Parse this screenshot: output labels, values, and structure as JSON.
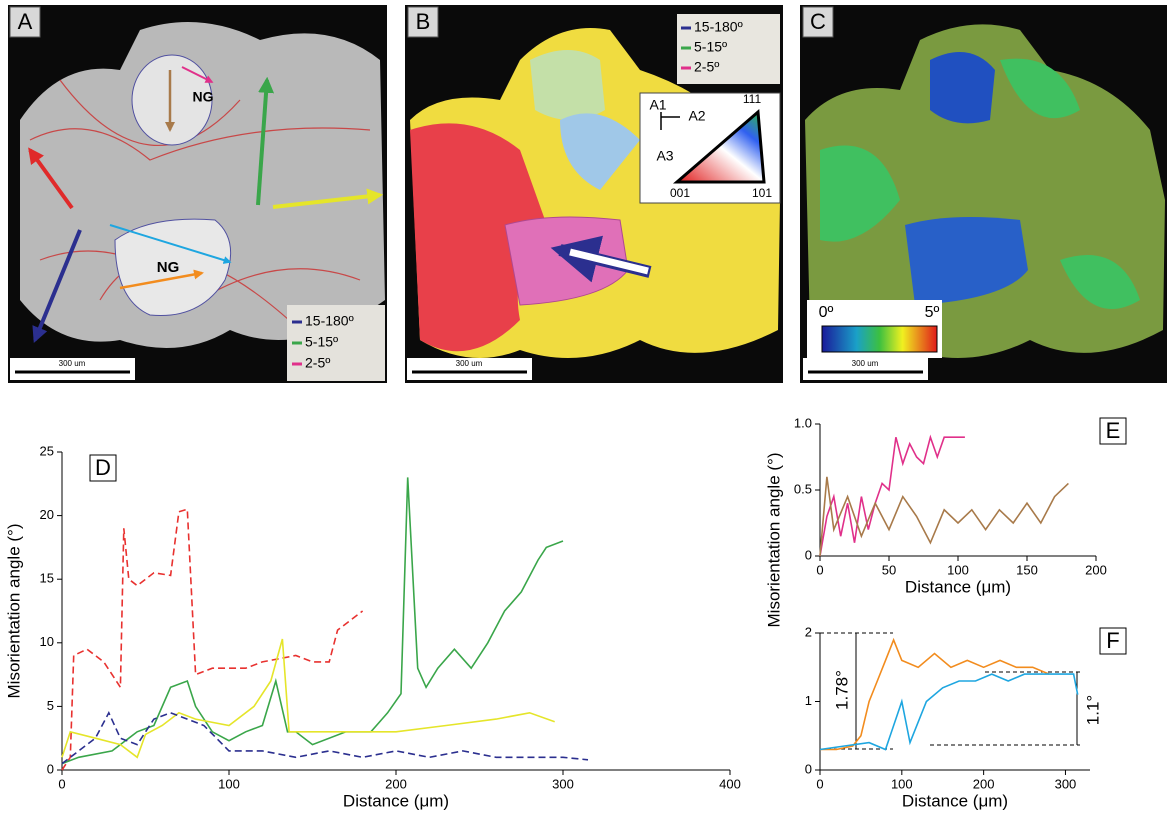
{
  "panels": [
    {
      "label": "A",
      "grain_labels": [
        "NG",
        "NG"
      ],
      "legend": [
        "15-180º",
        "5-15º",
        "2-5º"
      ],
      "scale_bar": "300 um"
    },
    {
      "label": "B",
      "legend": [
        "15-180º",
        "5-15º",
        "2-5º"
      ],
      "key_axes": [
        "A1",
        "A2",
        "A3"
      ],
      "key_corners": [
        "111",
        "001",
        "101"
      ],
      "scale_bar": "300 um"
    },
    {
      "label": "C",
      "colorbar": [
        "0º",
        "5º"
      ],
      "scale_bar": "300 um"
    }
  ],
  "chart_data": [
    {
      "type": "line",
      "panel": "D",
      "x_label": "Distance (μm)",
      "y_label": "Misorientation angle (°)",
      "xlim": [
        0,
        400
      ],
      "ylim": [
        0,
        25
      ],
      "xticks": [
        0,
        100,
        200,
        300,
        400
      ],
      "yticks": [
        0,
        5,
        10,
        15,
        20,
        25
      ],
      "series": [
        {
          "color": "#e8312f",
          "dashed": true,
          "x": [
            0,
            5,
            7,
            15,
            25,
            35,
            37,
            40,
            45,
            55,
            65,
            70,
            75,
            80,
            90,
            110,
            120,
            140,
            150,
            160,
            165,
            180
          ],
          "values": [
            0,
            1,
            9,
            9.5,
            8.5,
            6.5,
            19,
            15,
            14.5,
            15.5,
            15.3,
            20.3,
            20.5,
            7.5,
            8,
            8,
            8.5,
            9,
            8.5,
            8.5,
            11,
            12.5
          ]
        },
        {
          "color": "#3aa64a",
          "dashed": false,
          "x": [
            0,
            10,
            30,
            45,
            55,
            65,
            75,
            80,
            90,
            100,
            110,
            120,
            128,
            135,
            140,
            150,
            170,
            185,
            195,
            203,
            207,
            213,
            218,
            225,
            235,
            245,
            255,
            265,
            275,
            285,
            290,
            300
          ],
          "values": [
            0.5,
            1,
            1.5,
            3,
            3.5,
            6.5,
            7,
            5,
            3,
            2.3,
            3,
            3.5,
            7,
            3,
            3,
            2,
            3,
            3,
            4.5,
            6,
            23,
            8,
            6.5,
            8,
            9.5,
            8,
            10,
            12.5,
            14,
            16.5,
            17.5,
            18
          ]
        },
        {
          "color": "#e5e52a",
          "dashed": false,
          "x": [
            0,
            5,
            20,
            35,
            45,
            50,
            60,
            70,
            80,
            100,
            115,
            125,
            132,
            136,
            150,
            170,
            200,
            230,
            260,
            280,
            295
          ],
          "values": [
            1,
            3,
            2.5,
            2,
            1,
            2.8,
            3.5,
            4.5,
            4,
            3.5,
            5,
            7,
            10.3,
            3,
            3,
            3,
            3,
            3.5,
            4,
            4.5,
            3.8
          ]
        },
        {
          "color": "#2b2f8f",
          "dashed": true,
          "x": [
            0,
            10,
            20,
            28,
            35,
            45,
            55,
            65,
            75,
            85,
            100,
            120,
            140,
            160,
            180,
            200,
            220,
            240,
            260,
            280,
            300,
            315
          ],
          "values": [
            0.5,
            1.5,
            2.5,
            4.5,
            2.5,
            2,
            4,
            4.5,
            4,
            3.5,
            1.5,
            1.5,
            1,
            1.5,
            1,
            1.5,
            1,
            1.5,
            1,
            1,
            1,
            0.8
          ]
        }
      ]
    },
    {
      "type": "line",
      "panel": "E",
      "x_label": "Distance (μm)",
      "xlim": [
        0,
        200
      ],
      "ylim": [
        0,
        1
      ],
      "xticks": [
        0,
        50,
        100,
        150,
        200
      ],
      "yticks": [
        0,
        0.5,
        {
          "value": 1,
          "label": "1.0"
        }
      ],
      "series": [
        {
          "color": "#e0308a",
          "dashed": false,
          "x": [
            0,
            5,
            10,
            15,
            20,
            25,
            30,
            35,
            40,
            45,
            50,
            55,
            60,
            65,
            70,
            75,
            80,
            85,
            90,
            95,
            105
          ],
          "values": [
            0,
            0.3,
            0.45,
            0.15,
            0.4,
            0.1,
            0.45,
            0.2,
            0.4,
            0.55,
            0.5,
            0.9,
            0.7,
            0.85,
            0.75,
            0.7,
            0.9,
            0.75,
            0.9,
            0.9,
            0.9
          ]
        },
        {
          "color": "#a87a4a",
          "dashed": false,
          "x": [
            0,
            5,
            10,
            20,
            30,
            40,
            50,
            60,
            70,
            80,
            90,
            100,
            110,
            120,
            130,
            140,
            150,
            160,
            170,
            180
          ],
          "values": [
            0,
            0.6,
            0.2,
            0.45,
            0.15,
            0.4,
            0.2,
            0.45,
            0.3,
            0.1,
            0.35,
            0.25,
            0.35,
            0.2,
            0.35,
            0.25,
            0.4,
            0.25,
            0.45,
            0.55
          ]
        }
      ]
    },
    {
      "type": "line",
      "panel": "F",
      "x_label": "Distance (μm)",
      "y_label": "Misorientation angle (°)",
      "annotations": [
        "1.78°",
        "1.1°"
      ],
      "xlim": [
        0,
        330
      ],
      "ylim": [
        0,
        2
      ],
      "xticks": [
        0,
        100,
        200,
        300
      ],
      "yticks": [
        0,
        1,
        2
      ],
      "series": [
        {
          "color": "#f28c1e",
          "dashed": false,
          "x": [
            0,
            20,
            40,
            50,
            60,
            70,
            80,
            90,
            100,
            120,
            140,
            160,
            180,
            200,
            220,
            240,
            260,
            280
          ],
          "values": [
            0.3,
            0.3,
            0.35,
            0.5,
            1,
            1.3,
            1.6,
            1.9,
            1.6,
            1.5,
            1.7,
            1.5,
            1.6,
            1.5,
            1.6,
            1.5,
            1.5,
            1.4
          ]
        },
        {
          "color": "#1ea6e0",
          "dashed": false,
          "x": [
            0,
            30,
            60,
            80,
            100,
            110,
            130,
            150,
            170,
            190,
            210,
            230,
            250,
            270,
            290,
            310,
            315
          ],
          "values": [
            0.3,
            0.35,
            0.4,
            0.3,
            1,
            0.4,
            1,
            1.2,
            1.3,
            1.3,
            1.4,
            1.3,
            1.4,
            1.4,
            1.4,
            1.4,
            1.1
          ]
        }
      ]
    }
  ]
}
